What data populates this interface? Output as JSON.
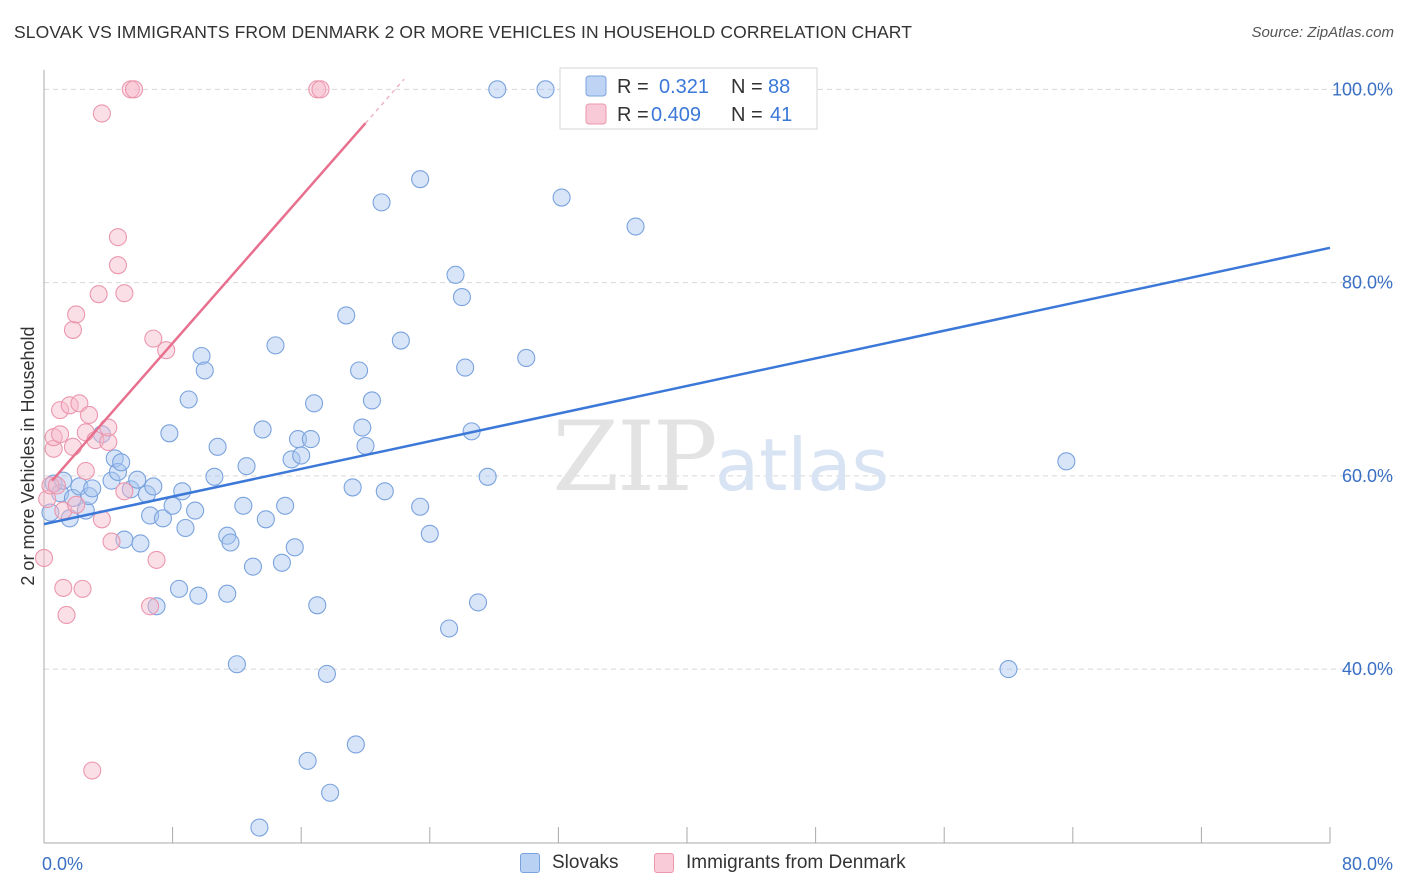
{
  "title": "SLOVAK VS IMMIGRANTS FROM DENMARK 2 OR MORE VEHICLES IN HOUSEHOLD CORRELATION CHART",
  "source": "Source: ZipAtlas.com",
  "colors": {
    "blue": "#3b78d8",
    "blue_fill": "#a9c6f0",
    "pink": "#e8708f",
    "pink_fill": "#f6b8c9",
    "tick_label": "#3b6fc4",
    "grid": "#d8d8d8"
  },
  "chart_data": {
    "type": "scatter",
    "title": "SLOVAK VS IMMIGRANTS FROM DENMARK 2 OR MORE VEHICLES IN HOUSEHOLD CORRELATION CHART",
    "xlabel": "",
    "ylabel": "2 or more Vehicles in Household",
    "xlim": [
      0,
      80
    ],
    "ylim": [
      22,
      102
    ],
    "x_tick_labels": [
      "0.0%",
      "80.0%"
    ],
    "y_ticks": [
      40,
      60,
      80,
      100
    ],
    "y_tick_labels": [
      "40.0%",
      "60.0%",
      "80.0%",
      "100.0%"
    ],
    "grid": true,
    "legend_position": "top-center",
    "watermark": "ZIPatlas",
    "legend": [
      {
        "name": "Slovaks",
        "r_label": "R = ",
        "r": "0.321",
        "n_label": "N = ",
        "n": "88"
      },
      {
        "name": "Immigrants from Denmark",
        "r_label": "R = ",
        "r": "0.409",
        "n_label": "N = ",
        "n": "41"
      }
    ],
    "series": [
      {
        "name": "Slovaks",
        "color": "#3b78d8",
        "trendline": {
          "x": [
            0,
            80
          ],
          "y": [
            55.0,
            83.6
          ]
        },
        "points": [
          [
            0.4,
            56.2
          ],
          [
            0.6,
            59.2
          ],
          [
            1.0,
            58.2
          ],
          [
            1.2,
            59.5
          ],
          [
            1.6,
            55.6
          ],
          [
            1.8,
            57.7
          ],
          [
            2.2,
            58.9
          ],
          [
            2.6,
            56.4
          ],
          [
            2.8,
            57.9
          ],
          [
            3.0,
            58.7
          ],
          [
            3.6,
            64.3
          ],
          [
            4.2,
            59.5
          ],
          [
            4.4,
            61.8
          ],
          [
            4.6,
            60.4
          ],
          [
            4.8,
            61.4
          ],
          [
            5.0,
            53.4
          ],
          [
            5.4,
            58.6
          ],
          [
            5.8,
            59.6
          ],
          [
            6.0,
            53.0
          ],
          [
            6.4,
            58.1
          ],
          [
            6.6,
            55.9
          ],
          [
            6.8,
            58.9
          ],
          [
            7.0,
            46.5
          ],
          [
            7.4,
            55.6
          ],
          [
            7.8,
            64.4
          ],
          [
            8.0,
            56.9
          ],
          [
            8.4,
            48.3
          ],
          [
            8.6,
            58.4
          ],
          [
            8.8,
            54.6
          ],
          [
            9.0,
            67.9
          ],
          [
            9.4,
            56.4
          ],
          [
            9.6,
            47.6
          ],
          [
            9.8,
            72.4
          ],
          [
            10.0,
            70.9
          ],
          [
            10.6,
            59.9
          ],
          [
            10.8,
            63.0
          ],
          [
            11.4,
            47.8
          ],
          [
            11.4,
            53.8
          ],
          [
            11.6,
            53.1
          ],
          [
            12.0,
            40.5
          ],
          [
            12.4,
            56.9
          ],
          [
            12.6,
            61.0
          ],
          [
            13.0,
            50.6
          ],
          [
            13.4,
            23.6
          ],
          [
            13.6,
            64.8
          ],
          [
            13.8,
            55.5
          ],
          [
            14.4,
            73.5
          ],
          [
            14.8,
            51.0
          ],
          [
            15.0,
            56.9
          ],
          [
            15.4,
            61.7
          ],
          [
            15.6,
            52.6
          ],
          [
            15.8,
            63.8
          ],
          [
            16.0,
            62.1
          ],
          [
            16.4,
            30.5
          ],
          [
            16.6,
            63.8
          ],
          [
            16.8,
            67.5
          ],
          [
            17.0,
            46.6
          ],
          [
            17.6,
            39.5
          ],
          [
            17.8,
            27.2
          ],
          [
            18.8,
            76.6
          ],
          [
            19.2,
            58.8
          ],
          [
            19.4,
            32.2
          ],
          [
            19.6,
            70.9
          ],
          [
            19.8,
            65.0
          ],
          [
            20.0,
            63.1
          ],
          [
            20.4,
            67.8
          ],
          [
            21.0,
            88.3
          ],
          [
            21.2,
            58.4
          ],
          [
            22.2,
            74.0
          ],
          [
            23.4,
            90.7
          ],
          [
            23.4,
            56.8
          ],
          [
            24.0,
            54.0
          ],
          [
            25.2,
            44.2
          ],
          [
            25.6,
            80.8
          ],
          [
            26.0,
            78.5
          ],
          [
            26.2,
            71.2
          ],
          [
            26.6,
            64.6
          ],
          [
            27.0,
            46.9
          ],
          [
            27.6,
            59.9
          ],
          [
            28.2,
            100.0
          ],
          [
            30.0,
            72.2
          ],
          [
            31.2,
            100.0
          ],
          [
            32.2,
            88.8
          ],
          [
            35.0,
            100.0
          ],
          [
            36.8,
            85.8
          ],
          [
            37.0,
            100.0
          ],
          [
            60.0,
            40.0
          ],
          [
            63.6,
            61.5
          ]
        ]
      },
      {
        "name": "Immigrants from Denmark",
        "color": "#e8708f",
        "trendline": {
          "x": [
            0.5,
            20.0
          ],
          "y": [
            59.5,
            96.5
          ]
        },
        "points": [
          [
            0.0,
            51.5
          ],
          [
            0.2,
            57.6
          ],
          [
            0.4,
            59.0
          ],
          [
            0.6,
            62.8
          ],
          [
            0.6,
            64.0
          ],
          [
            0.8,
            59.0
          ],
          [
            1.0,
            66.8
          ],
          [
            1.0,
            64.3
          ],
          [
            1.2,
            56.4
          ],
          [
            1.2,
            48.4
          ],
          [
            1.4,
            45.6
          ],
          [
            1.6,
            67.3
          ],
          [
            1.8,
            75.1
          ],
          [
            1.8,
            63.0
          ],
          [
            2.0,
            76.7
          ],
          [
            2.0,
            57.0
          ],
          [
            2.2,
            67.5
          ],
          [
            2.4,
            48.3
          ],
          [
            2.6,
            64.5
          ],
          [
            2.6,
            60.5
          ],
          [
            2.8,
            66.3
          ],
          [
            3.0,
            29.5
          ],
          [
            3.2,
            63.7
          ],
          [
            3.4,
            78.8
          ],
          [
            3.6,
            97.5
          ],
          [
            3.6,
            55.5
          ],
          [
            4.0,
            63.5
          ],
          [
            4.0,
            65.0
          ],
          [
            4.2,
            53.2
          ],
          [
            4.6,
            81.8
          ],
          [
            4.6,
            84.7
          ],
          [
            5.0,
            58.4
          ],
          [
            5.0,
            78.9
          ],
          [
            5.4,
            100.0
          ],
          [
            5.6,
            100.0
          ],
          [
            6.6,
            46.5
          ],
          [
            6.8,
            74.2
          ],
          [
            7.0,
            51.3
          ],
          [
            7.6,
            73.0
          ],
          [
            17.0,
            100.0
          ],
          [
            17.2,
            100.0
          ]
        ]
      }
    ]
  }
}
